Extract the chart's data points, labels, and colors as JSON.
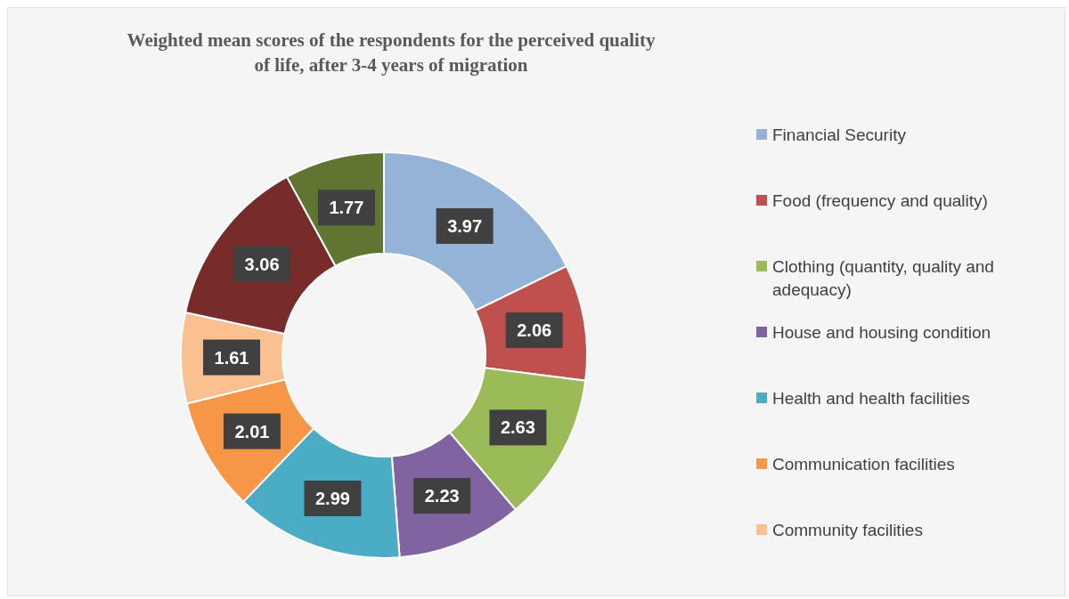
{
  "chart_data": {
    "type": "donut",
    "title": "Weighted mean scores of the respondents for the perceived quality of life, after 3-4 years of migration",
    "categories": [
      "Financial Security",
      "Food (frequency and quality)",
      "Clothing (quantity, quality and adequacy)",
      "House and housing condition",
      "Health and health facilities",
      "Communication facilities",
      "Community facilities",
      null,
      null
    ],
    "values": [
      3.97,
      2.06,
      2.63,
      2.23,
      2.99,
      2.01,
      1.61,
      3.06,
      1.77
    ],
    "colors": [
      "#95b3d7",
      "#c0504d",
      "#9bbb59",
      "#8064a2",
      "#4bacc6",
      "#f79646",
      "#fac090",
      "#772c2a",
      "#5f7530"
    ],
    "data_labels": true,
    "legend": "right"
  }
}
